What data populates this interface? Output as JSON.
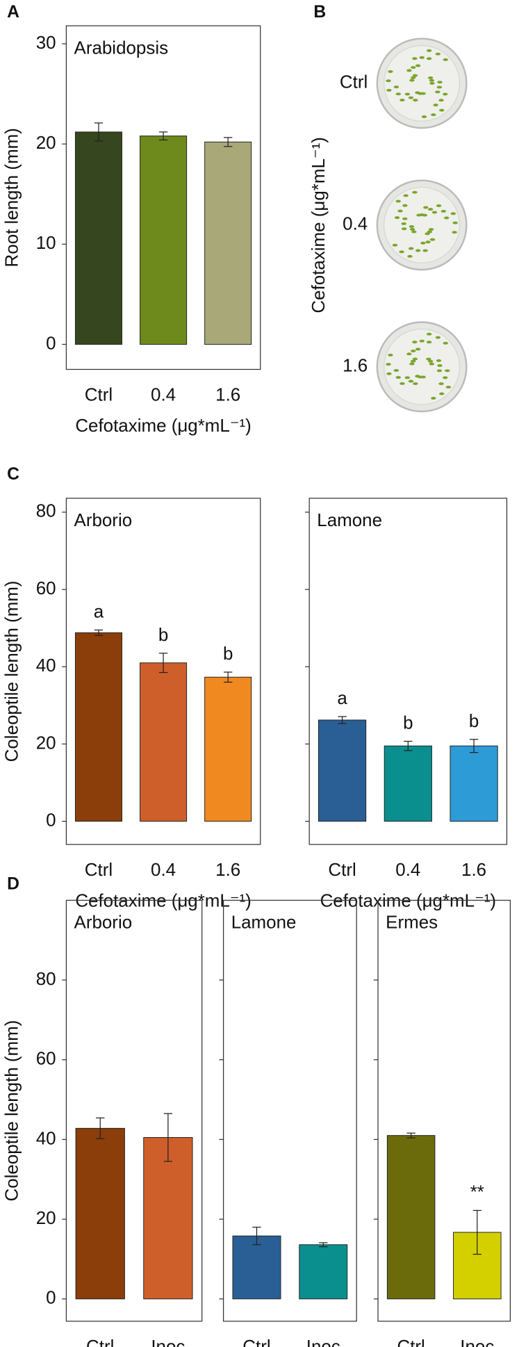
{
  "chart_data": [
    {
      "type": "bar",
      "panel_label": "A",
      "title": "Arabidopsis",
      "categories": [
        "Ctrl",
        "0.4",
        "1.6"
      ],
      "values": [
        21.2,
        20.8,
        20.2
      ],
      "errors": [
        0.9,
        0.4,
        0.45
      ],
      "colors": [
        "#36461f",
        "#6e8a1c",
        "#a8a878"
      ],
      "ylim": [
        -2.5,
        31.8
      ],
      "yticks": [
        0,
        10,
        20,
        30
      ],
      "show_ytick_labels": true,
      "ylabel": "Root length (mm)",
      "xlabel": "Cefotaxime (μg*mL⁻¹)"
    },
    {
      "type": "image",
      "panel_label": "B",
      "categories": [
        "Ctrl",
        "0.4",
        "1.6"
      ],
      "ylabel": "Cefotaxime (μg*mL⁻¹)"
    },
    {
      "type": "bar",
      "panel_label": "C",
      "title": "Arborio",
      "categories": [
        "Ctrl",
        "0.4",
        "1.6"
      ],
      "values": [
        48.8,
        41,
        37.3
      ],
      "errors": [
        0.7,
        2.5,
        1.3
      ],
      "annotations": [
        "a",
        "b",
        "b"
      ],
      "colors": [
        "#8b3e0a",
        "#cf5f2a",
        "#f08a20"
      ],
      "ylim": [
        -6,
        83.6
      ],
      "yticks": [
        0,
        20,
        40,
        60,
        80
      ],
      "show_ytick_labels": true,
      "ylabel": "Coleoptile length (mm)",
      "xlabel": "Cefotaxime (μg*mL⁻¹)"
    },
    {
      "type": "bar",
      "title": "Lamone",
      "categories": [
        "Ctrl",
        "0.4",
        "1.6"
      ],
      "values": [
        26.2,
        19.5,
        19.5
      ],
      "errors": [
        0.9,
        1.2,
        1.7
      ],
      "annotations": [
        "a",
        "b",
        "b"
      ],
      "colors": [
        "#2a5f96",
        "#0b8f8e",
        "#2d9bd6"
      ],
      "ylim": [
        -6,
        83.6
      ],
      "yticks": [
        0,
        20,
        40,
        60,
        80
      ],
      "show_ytick_labels": false,
      "xlabel": "Cefotaxime (μg*mL⁻¹)"
    },
    {
      "type": "bar",
      "panel_label": "D",
      "title": "Arborio",
      "categories": [
        "Ctrl",
        "Inoc"
      ],
      "values": [
        42.8,
        40.5
      ],
      "errors": [
        2.6,
        6
      ],
      "colors": [
        "#8b3e0a",
        "#cf5f2a"
      ],
      "ylim": [
        -5.6,
        100
      ],
      "yticks": [
        0,
        20,
        40,
        60,
        80
      ],
      "show_ytick_labels": true,
      "ylabel": "Coleoptile length (mm)"
    },
    {
      "type": "bar",
      "title": "Lamone",
      "categories": [
        "Ctrl",
        "Inoc"
      ],
      "values": [
        15.8,
        13.6
      ],
      "errors": [
        2.2,
        0.5
      ],
      "colors": [
        "#2a5f96",
        "#0b8f8e"
      ],
      "ylim": [
        -5.6,
        100
      ],
      "yticks": [
        0,
        20,
        40,
        60,
        80
      ],
      "show_ytick_labels": false
    },
    {
      "type": "bar",
      "title": "Ermes",
      "categories": [
        "Ctrl",
        "Inoc"
      ],
      "values": [
        41,
        16.7
      ],
      "errors": [
        0.6,
        5.5
      ],
      "annotations": [
        null,
        "**"
      ],
      "colors": [
        "#6b6b0b",
        "#d4d000"
      ],
      "ylim": [
        -5.6,
        100
      ],
      "yticks": [
        0,
        20,
        40,
        60,
        80
      ],
      "show_ytick_labels": false
    }
  ]
}
